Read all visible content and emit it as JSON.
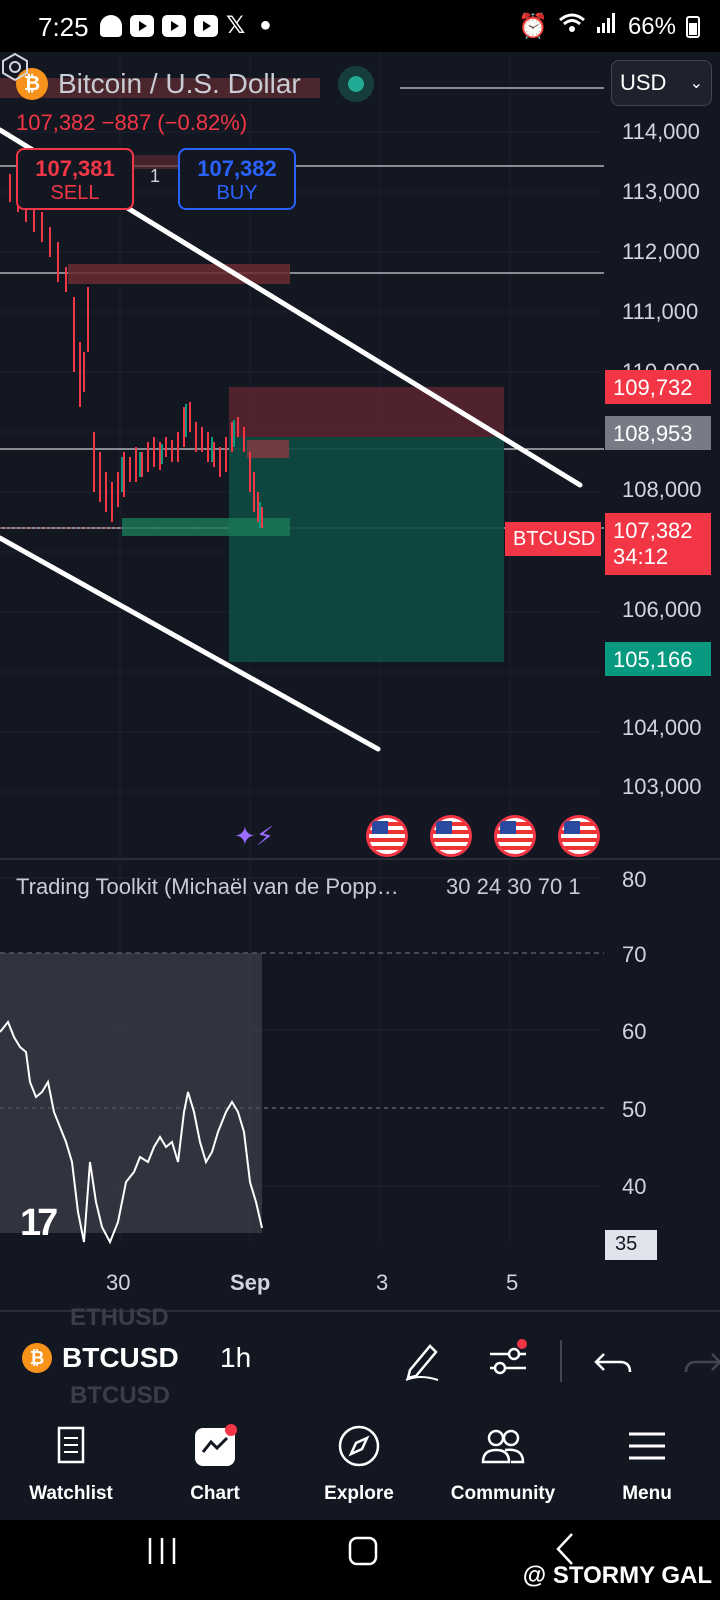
{
  "status_bar": {
    "time": "7:25",
    "battery": "66%"
  },
  "chart": {
    "symbol_title": "Bitcoin / U.S. Dollar",
    "quote": "107,382  −887 (−0.82%)",
    "sell": {
      "price": "107,381",
      "label": "SELL"
    },
    "buy": {
      "price": "107,382",
      "label": "BUY"
    },
    "spread": "1",
    "currency": "USD",
    "price_axis": [
      "114,000",
      "113,000",
      "112,000",
      "111,000",
      "110,000",
      "108,000",
      "106,000",
      "104,000",
      "103,000"
    ],
    "tags": {
      "take_profit_upper": "109,732",
      "level_gray": "108,953",
      "current_price": "107,382",
      "countdown": "34:12",
      "symbol_tag": "BTCUSD",
      "target_green": "105,166"
    }
  },
  "indicator": {
    "title": "Trading Toolkit (Michaël van de Popp…",
    "values": "30 24 30 70 1",
    "axis": [
      "80",
      "70",
      "60",
      "50",
      "40"
    ],
    "current": "35"
  },
  "time_axis": [
    "30",
    "Sep",
    "3",
    "5"
  ],
  "toolbar": {
    "ghost_top": "ETHUSD",
    "symbol": "BTCUSD",
    "ghost_bottom": "BTCUSD",
    "interval": "1h"
  },
  "nav": {
    "watchlist": "Watchlist",
    "chart": "Chart",
    "explore": "Explore",
    "community": "Community",
    "menu": "Menu"
  },
  "watermark": "@ STORMY GAL",
  "colors": {
    "bg": "#131722",
    "red": "#f23645",
    "green": "#089981",
    "blue": "#2962ff",
    "btc": "#f7931a"
  }
}
